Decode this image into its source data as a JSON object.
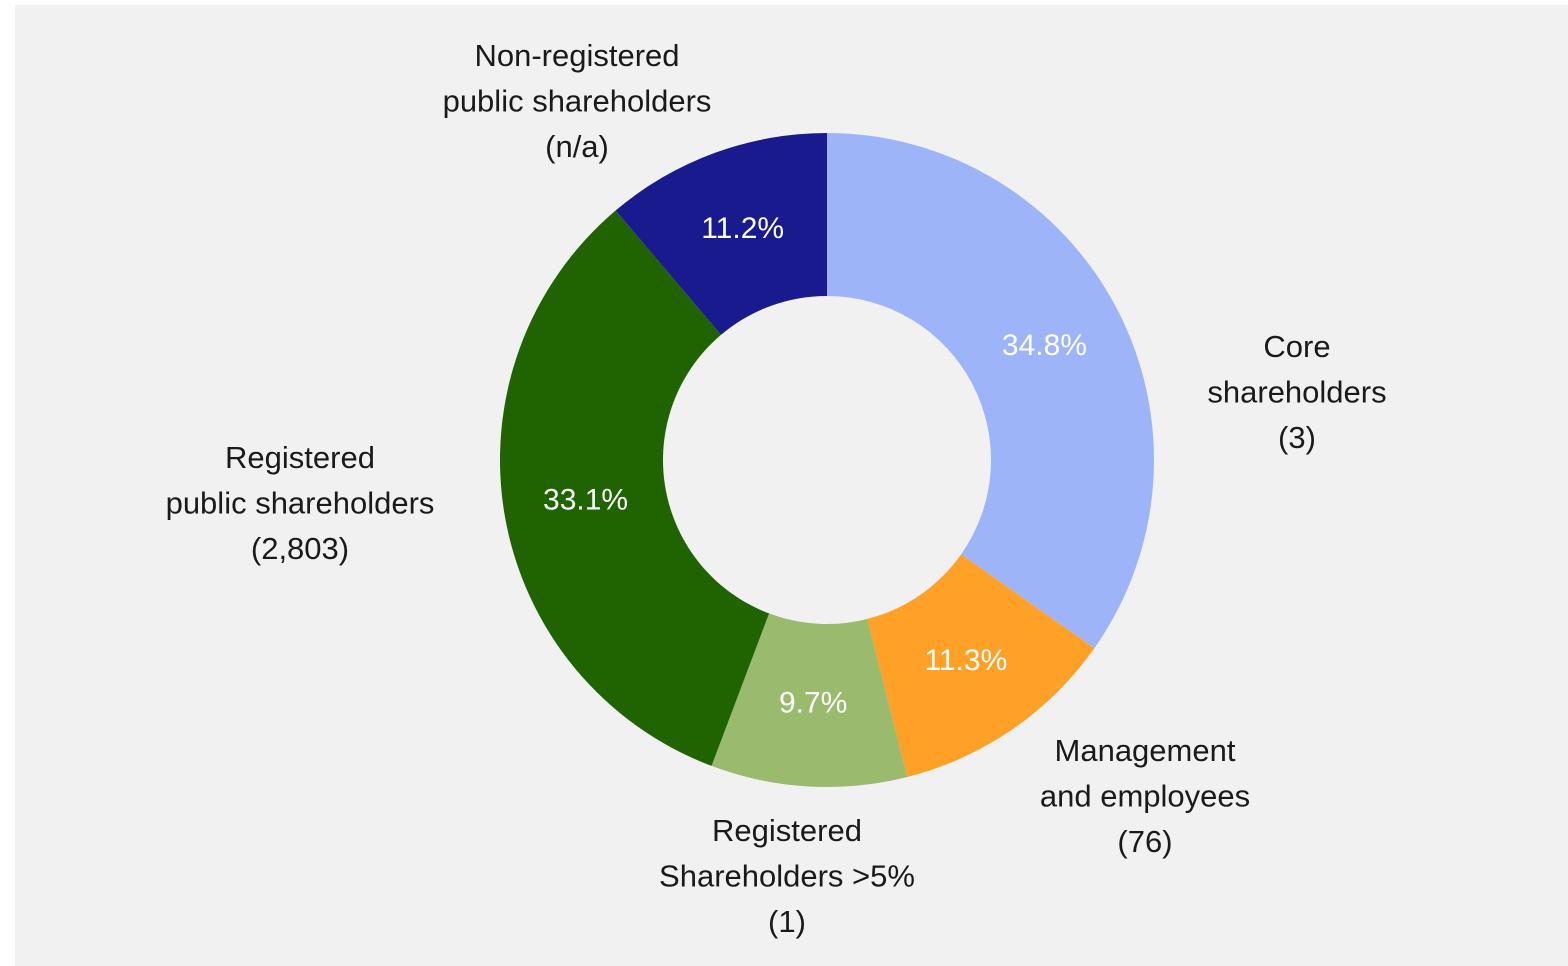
{
  "chart_data": {
    "type": "donut",
    "categories": [
      [
        "Core",
        "shareholders",
        "(3)"
      ],
      [
        "Management",
        "and employees",
        "(76)"
      ],
      [
        "Registered",
        "Shareholders >5%",
        "(1)"
      ],
      [
        "Registered",
        "public shareholders",
        "(2,803)"
      ],
      [
        "Non-registered",
        "public shareholders",
        "(n/a)"
      ]
    ],
    "values": [
      34.8,
      11.3,
      9.7,
      33.1,
      11.2
    ],
    "value_labels": [
      "34.8%",
      "11.3%",
      "9.7%",
      "33.1%",
      "11.2%"
    ],
    "colors": [
      "#9db4f9",
      "#ffa126",
      "#9aba6e",
      "#1f6400",
      "#1a1a8f"
    ]
  }
}
